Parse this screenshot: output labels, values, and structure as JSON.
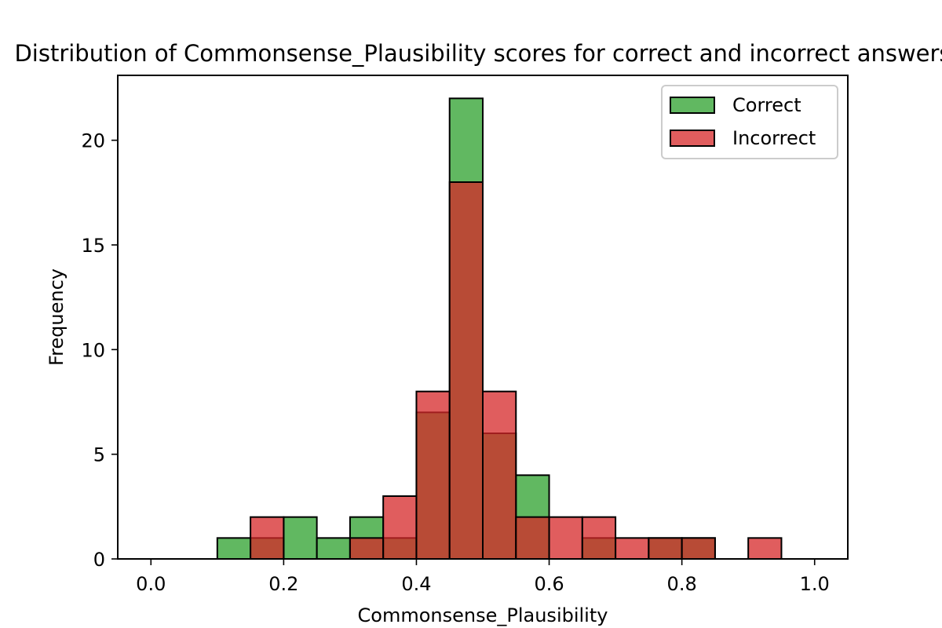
{
  "chart_data": {
    "type": "histogram",
    "title": "Distribution of Commonsense_Plausibility scores for correct and incorrect answers",
    "xlabel": "Commonsense_Plausibility",
    "ylabel": "Frequency",
    "xlim": [
      -0.05,
      1.05
    ],
    "ylim": [
      0,
      23.1
    ],
    "x_ticks": [
      0.0,
      0.2,
      0.4,
      0.6,
      0.8,
      1.0
    ],
    "x_tick_labels": [
      "0.0",
      "0.2",
      "0.4",
      "0.6",
      "0.8",
      "1.0"
    ],
    "y_ticks": [
      0,
      5,
      10,
      15,
      20
    ],
    "y_tick_labels": [
      "0",
      "5",
      "10",
      "15",
      "20"
    ],
    "grid": false,
    "legend_position": "upper right",
    "bin_edges": [
      0.0,
      0.05,
      0.1,
      0.15,
      0.2,
      0.25,
      0.3,
      0.35,
      0.4,
      0.45,
      0.5,
      0.55,
      0.6,
      0.65,
      0.7,
      0.75,
      0.8,
      0.85,
      0.9,
      0.95,
      1.0
    ],
    "series": [
      {
        "name": "Correct",
        "color": "#2ca02c",
        "values": [
          0,
          0,
          1,
          1,
          2,
          1,
          2,
          1,
          7,
          22,
          6,
          4,
          0,
          1,
          0,
          1,
          1,
          0,
          0,
          0
        ]
      },
      {
        "name": "Incorrect",
        "color": "#d62728",
        "values": [
          0,
          0,
          0,
          2,
          0,
          0,
          1,
          3,
          8,
          18,
          8,
          2,
          2,
          2,
          1,
          1,
          1,
          0,
          1,
          0
        ]
      }
    ]
  }
}
